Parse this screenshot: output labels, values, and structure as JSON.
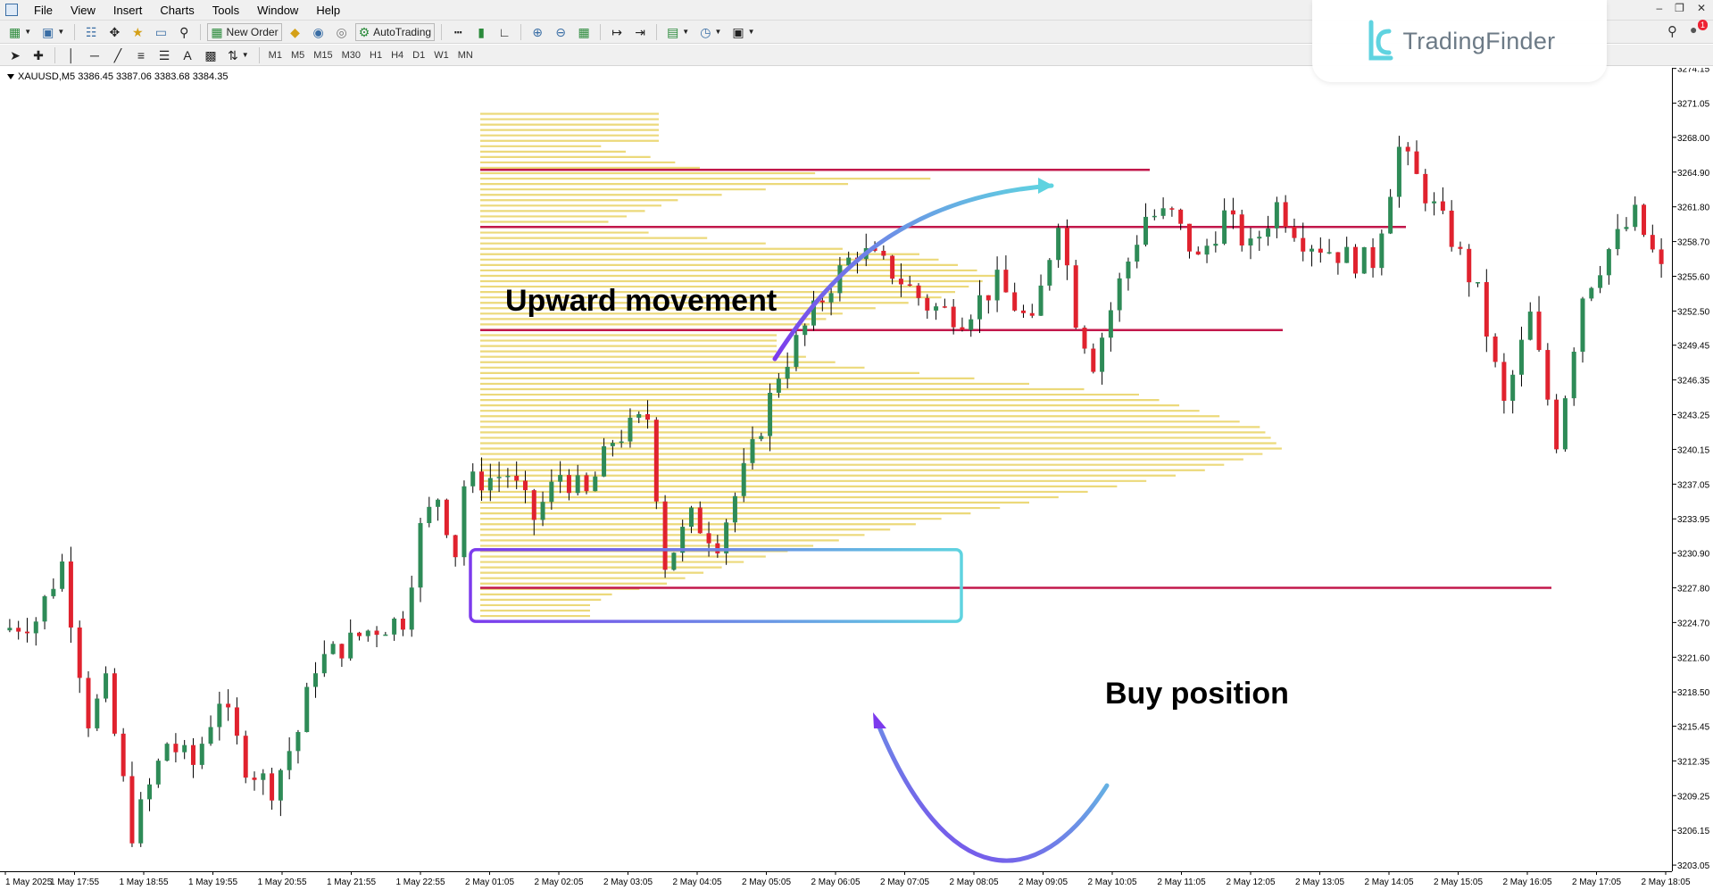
{
  "menu": [
    "File",
    "View",
    "Insert",
    "Charts",
    "Tools",
    "Window",
    "Help"
  ],
  "toolbar": {
    "new_order": "New Order",
    "autotrading": "AutoTrading"
  },
  "timeframes": [
    "M1",
    "M5",
    "M15",
    "M30",
    "H1",
    "H4",
    "D1",
    "W1",
    "MN"
  ],
  "brand": {
    "name": "TradingFinder",
    "color": "#5fd3e0"
  },
  "notifications": {
    "count": "1"
  },
  "chart": {
    "symbol_line": "XAUUSD,M5  3386.45 3387.06 3383.68 3384.35",
    "annotations": {
      "upward": "Upward movement",
      "buy": "Buy position"
    },
    "colors": {
      "bull": "#2e8b57",
      "bear": "#e0222e",
      "profile": "#ecd97a",
      "level": "#c2184b",
      "arrow_start": "#7c3aed",
      "arrow_end": "#5fd3e0"
    }
  },
  "chart_data": {
    "type": "candlestick",
    "symbol": "XAUUSD",
    "timeframe": "M5",
    "ohlc_last": [
      3386.45,
      3387.06,
      3383.68,
      3384.35
    ],
    "y_ticks": [
      "3274.15",
      "3271.05",
      "3268.00",
      "3264.90",
      "3261.80",
      "3258.70",
      "3255.60",
      "3252.50",
      "3249.45",
      "3246.35",
      "3243.25",
      "3240.15",
      "3237.05",
      "3233.95",
      "3230.90",
      "3227.80",
      "3224.70",
      "3221.60",
      "3218.50",
      "3215.45",
      "3212.35",
      "3209.25",
      "3206.15",
      "3203.05"
    ],
    "x_ticks": [
      "1 May 2025",
      "1 May 17:55",
      "1 May 18:55",
      "1 May 19:55",
      "1 May 20:55",
      "1 May 21:55",
      "1 May 22:55",
      "2 May 01:05",
      "2 May 02:05",
      "2 May 03:05",
      "2 May 04:05",
      "2 May 05:05",
      "2 May 06:05",
      "2 May 07:05",
      "2 May 08:05",
      "2 May 09:05",
      "2 May 10:05",
      "2 May 11:05",
      "2 May 12:05",
      "2 May 13:05",
      "2 May 14:05",
      "2 May 15:05",
      "2 May 16:05",
      "2 May 17:05",
      "2 May 18:05"
    ],
    "ylim": [
      3202.5,
      3275
    ],
    "horizontal_levels": [
      3265.1,
      3260.0,
      3250.8,
      3227.8
    ],
    "price_path": [
      [
        0,
        3224
      ],
      [
        4,
        3225
      ],
      [
        7,
        3230
      ],
      [
        10,
        3216
      ],
      [
        12,
        3219
      ],
      [
        15,
        3206
      ],
      [
        19,
        3214
      ],
      [
        22,
        3212
      ],
      [
        25,
        3218
      ],
      [
        28,
        3212
      ],
      [
        31,
        3210
      ],
      [
        34,
        3215
      ],
      [
        36,
        3221
      ],
      [
        42,
        3224
      ],
      [
        46,
        3225
      ],
      [
        48,
        3233
      ],
      [
        50,
        3236
      ],
      [
        52,
        3231
      ],
      [
        53,
        3237
      ],
      [
        58,
        3238
      ],
      [
        61,
        3234
      ],
      [
        64,
        3238
      ],
      [
        67,
        3236
      ],
      [
        70,
        3241
      ],
      [
        74,
        3243
      ],
      [
        76,
        3230
      ],
      [
        79,
        3234
      ],
      [
        82,
        3232
      ],
      [
        86,
        3240
      ],
      [
        89,
        3247
      ],
      [
        92,
        3251
      ],
      [
        95,
        3255
      ],
      [
        98,
        3258
      ],
      [
        102,
        3256
      ],
      [
        106,
        3253
      ],
      [
        110,
        3252
      ],
      [
        114,
        3255
      ],
      [
        118,
        3251
      ],
      [
        121,
        3261
      ],
      [
        123,
        3252
      ],
      [
        125,
        3248
      ],
      [
        128,
        3255
      ],
      [
        131,
        3261
      ],
      [
        134,
        3261
      ],
      [
        137,
        3257
      ],
      [
        140,
        3261
      ],
      [
        143,
        3258
      ],
      [
        146,
        3262
      ],
      [
        149,
        3259
      ],
      [
        152,
        3258
      ],
      [
        155,
        3257
      ],
      [
        157,
        3257
      ],
      [
        160,
        3267
      ],
      [
        163,
        3263
      ],
      [
        166,
        3259
      ],
      [
        169,
        3254
      ],
      [
        172,
        3244
      ],
      [
        175,
        3252
      ],
      [
        178,
        3241
      ],
      [
        181,
        3254
      ],
      [
        184,
        3258
      ],
      [
        187,
        3261
      ],
      [
        190,
        3256
      ]
    ],
    "volume_profile": {
      "min_price": 3224.8,
      "max_price": 3270.1,
      "bins": 95,
      "nodes": [
        [
          0,
          0.0
        ],
        [
          3,
          0.0
        ],
        [
          6,
          0.11
        ],
        [
          10,
          0.2
        ],
        [
          12,
          0.41
        ],
        [
          14,
          0.26
        ],
        [
          16,
          0.18
        ],
        [
          18,
          0.15
        ],
        [
          21,
          0.1
        ],
        [
          24,
          0.26
        ],
        [
          26,
          0.4
        ],
        [
          30,
          0.47
        ],
        [
          34,
          0.42
        ],
        [
          37,
          0.33
        ],
        [
          41,
          0.27
        ],
        [
          44,
          0.27
        ],
        [
          47,
          0.35
        ],
        [
          52,
          0.6
        ],
        [
          58,
          0.71
        ],
        [
          62,
          0.73
        ],
        [
          66,
          0.66
        ],
        [
          69,
          0.58
        ],
        [
          72,
          0.5
        ],
        [
          75,
          0.42
        ],
        [
          78,
          0.35
        ],
        [
          81,
          0.28
        ],
        [
          84,
          0.22
        ],
        [
          87,
          0.17
        ],
        [
          89,
          0.12
        ],
        [
          91,
          0.1
        ],
        [
          94,
          0.1
        ]
      ]
    }
  }
}
